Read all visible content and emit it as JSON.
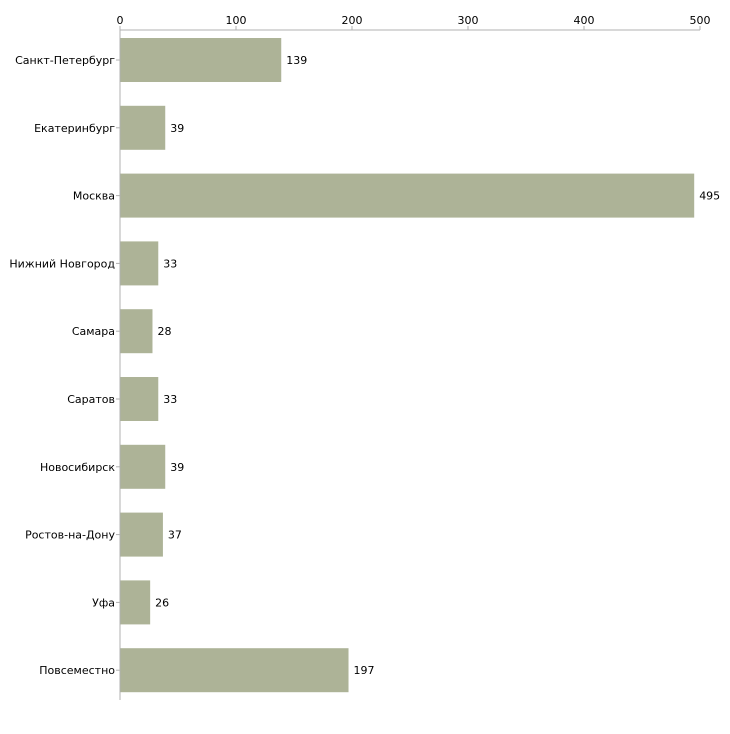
{
  "chart_data": {
    "type": "bar",
    "orientation": "horizontal",
    "title": "",
    "xlabel": "",
    "ylabel": "",
    "categories": [
      "Санкт-Петербург",
      "Екатеринбург",
      "Москва",
      "Нижний Новгород",
      "Самара",
      "Саратов",
      "Новосибирск",
      "Ростов-на-Дону",
      "Уфа",
      "Повсеместно"
    ],
    "values": [
      139,
      39,
      495,
      33,
      28,
      33,
      39,
      37,
      26,
      197
    ],
    "xlim": [
      0,
      500
    ],
    "ticks": [
      0,
      100,
      200,
      300,
      400,
      500
    ],
    "axis_position": "top",
    "grid": false,
    "show_data_labels": true,
    "bar_color": "#adb397",
    "axis_color": "#b0b0b0"
  }
}
